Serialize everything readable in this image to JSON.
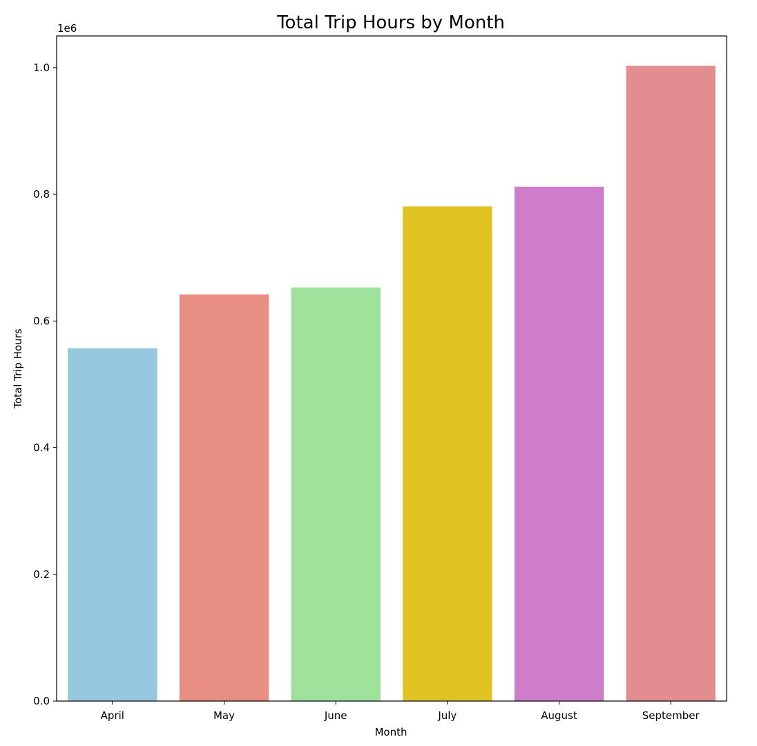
{
  "chart_data": {
    "type": "bar",
    "title": "Total Trip Hours by Month",
    "xlabel": "Month",
    "ylabel": "Total Trip Hours",
    "y_offset_label": "1e6",
    "categories": [
      "April",
      "May",
      "June",
      "July",
      "August",
      "September"
    ],
    "values": [
      557000,
      642000,
      653000,
      781000,
      812000,
      1003000
    ],
    "colors": [
      "#96c9df",
      "#e88e83",
      "#9ee29b",
      "#dfc322",
      "#cd7dca",
      "#e28e8f"
    ],
    "ylim": [
      0,
      1050000
    ],
    "yticks": [
      0,
      200000,
      400000,
      600000,
      800000,
      1000000
    ],
    "ytick_labels": [
      "0.0",
      "0.2",
      "0.4",
      "0.6",
      "0.8",
      "1.0"
    ],
    "grid": false,
    "legend": "none"
  }
}
